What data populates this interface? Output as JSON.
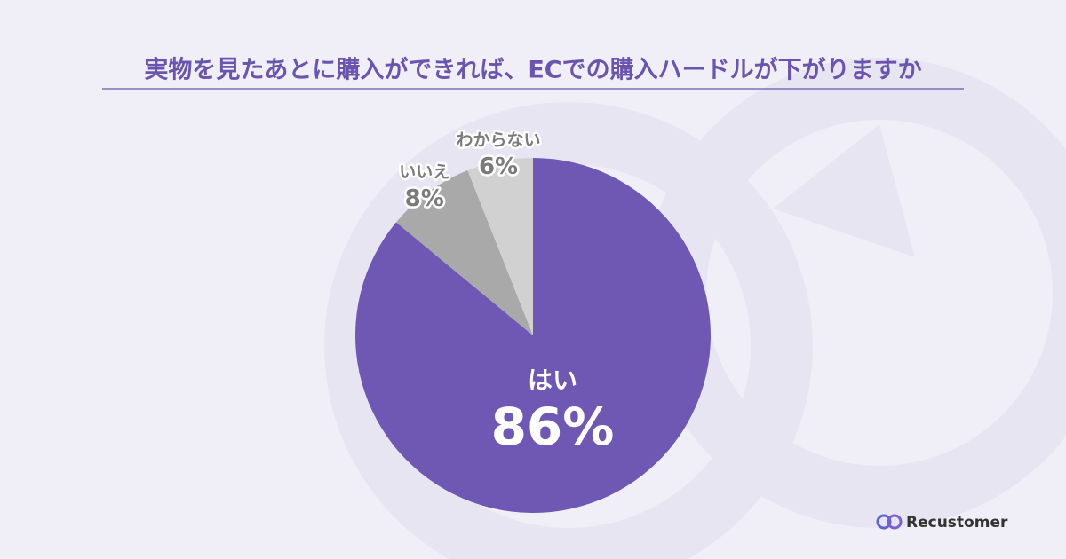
{
  "chart_data": {
    "type": "pie",
    "title": "実物を見たあとに購入ができれば、ECでの購入ハードルが下がりますか",
    "categories": [
      "はい",
      "いいえ",
      "わからない"
    ],
    "values": [
      86,
      8,
      6
    ],
    "value_labels": [
      "86%",
      "8%",
      "6%"
    ],
    "colors": [
      "#6f58b3",
      "#a9a9aa",
      "#d1d1d2"
    ]
  },
  "brand": "Recustomer"
}
